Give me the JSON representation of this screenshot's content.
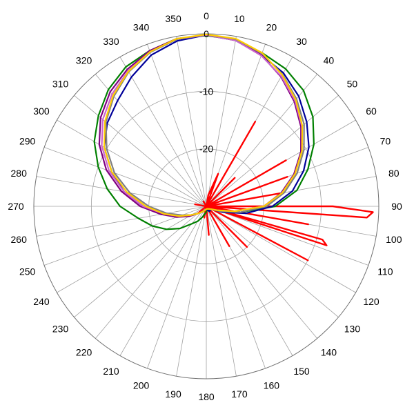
{
  "chart_data": {
    "type": "polar-line",
    "title": "",
    "angle_unit": "degrees",
    "angle_ticks": [
      0,
      10,
      20,
      30,
      40,
      50,
      60,
      70,
      80,
      90,
      100,
      110,
      120,
      130,
      140,
      150,
      160,
      170,
      180,
      190,
      200,
      210,
      220,
      230,
      240,
      250,
      260,
      270,
      280,
      290,
      300,
      310,
      320,
      330,
      340,
      350
    ],
    "angle_tick_labels": [
      "0",
      "10",
      "20",
      "30",
      "40",
      "50",
      "60",
      "70",
      "80",
      "90",
      "100",
      "110",
      "120",
      "130",
      "140",
      "150",
      "160",
      "170",
      "180",
      "190",
      "200",
      "210",
      "220",
      "230",
      "240",
      "250",
      "260",
      "270",
      "280",
      "290",
      "300",
      "310",
      "320",
      "330",
      "340",
      "350"
    ],
    "radial_range": [
      -30,
      0
    ],
    "radial_rings": [
      0,
      -10,
      -20,
      -30
    ],
    "radial_labels": [
      "0",
      "-10",
      "-20"
    ],
    "grid": true,
    "legend": "none",
    "series": [
      {
        "color": "#ff0000",
        "points": [
          [
            0,
            -30
          ],
          [
            10,
            -28
          ],
          [
            20,
            -24
          ],
          [
            25,
            -30
          ],
          [
            30,
            -13
          ],
          [
            35,
            -30
          ],
          [
            45,
            -23
          ],
          [
            50,
            -30
          ],
          [
            60,
            -14
          ],
          [
            65,
            -30
          ],
          [
            70,
            -15
          ],
          [
            75,
            -30
          ],
          [
            80,
            -17
          ],
          [
            85,
            -30
          ],
          [
            90,
            -8
          ],
          [
            92,
            -1
          ],
          [
            94,
            -2
          ],
          [
            96,
            -30
          ],
          [
            100,
            -12
          ],
          [
            103,
            -30
          ],
          [
            106,
            -9
          ],
          [
            108,
            -8
          ],
          [
            110,
            -30
          ],
          [
            118,
            -10
          ],
          [
            124,
            -30
          ],
          [
            135,
            -20
          ],
          [
            140,
            -30
          ],
          [
            150,
            -22
          ],
          [
            155,
            -30
          ],
          [
            175,
            -25
          ],
          [
            180,
            -30
          ],
          [
            190,
            -28
          ],
          [
            200,
            -30
          ],
          [
            230,
            -28
          ],
          [
            260,
            -30
          ],
          [
            280,
            -28
          ],
          [
            300,
            -30
          ],
          [
            330,
            -29
          ],
          [
            360,
            -30
          ]
        ]
      },
      {
        "color": "#008000",
        "points": [
          [
            0,
            -0.3
          ],
          [
            10,
            -0.6
          ],
          [
            20,
            -1.6
          ],
          [
            30,
            -2.4
          ],
          [
            40,
            -3.7
          ],
          [
            50,
            -5.8
          ],
          [
            60,
            -8.4
          ],
          [
            70,
            -11.2
          ],
          [
            80,
            -14
          ],
          [
            90,
            -18
          ],
          [
            100,
            -24
          ],
          [
            110,
            -28
          ],
          [
            120,
            -29
          ],
          [
            140,
            -29
          ],
          [
            160,
            -29.5
          ],
          [
            180,
            -29
          ],
          [
            200,
            -28
          ],
          [
            210,
            -27
          ],
          [
            220,
            -26
          ],
          [
            230,
            -24
          ],
          [
            240,
            -22
          ],
          [
            250,
            -20
          ],
          [
            260,
            -18
          ],
          [
            270,
            -15
          ],
          [
            280,
            -12.5
          ],
          [
            290,
            -10
          ],
          [
            300,
            -7.5
          ],
          [
            310,
            -5.5
          ],
          [
            320,
            -3.5
          ],
          [
            330,
            -2
          ],
          [
            340,
            -1.2
          ],
          [
            350,
            -0.4
          ],
          [
            360,
            -0.3
          ]
        ]
      },
      {
        "color": "#000099",
        "points": [
          [
            0,
            -0.2
          ],
          [
            10,
            -0.7
          ],
          [
            20,
            -2
          ],
          [
            30,
            -3.2
          ],
          [
            40,
            -5
          ],
          [
            50,
            -7.2
          ],
          [
            60,
            -9.4
          ],
          [
            70,
            -12
          ],
          [
            80,
            -14.8
          ],
          [
            90,
            -18.5
          ],
          [
            100,
            -23
          ],
          [
            110,
            -27
          ],
          [
            120,
            -29
          ],
          [
            150,
            -29
          ],
          [
            180,
            -29.5
          ],
          [
            210,
            -29
          ],
          [
            230,
            -28
          ],
          [
            240,
            -27
          ],
          [
            250,
            -25
          ],
          [
            260,
            -22
          ],
          [
            270,
            -19
          ],
          [
            280,
            -15.5
          ],
          [
            290,
            -12.5
          ],
          [
            300,
            -9.5
          ],
          [
            310,
            -7.5
          ],
          [
            320,
            -6
          ],
          [
            330,
            -4
          ],
          [
            340,
            -2
          ],
          [
            350,
            -0.8
          ],
          [
            360,
            -0.2
          ]
        ]
      },
      {
        "color": "#800080",
        "points": [
          [
            0,
            -0.2
          ],
          [
            10,
            -0.7
          ],
          [
            20,
            -2
          ],
          [
            30,
            -4
          ],
          [
            40,
            -6.2
          ],
          [
            50,
            -8.5
          ],
          [
            60,
            -11
          ],
          [
            70,
            -13.8
          ],
          [
            80,
            -16.8
          ],
          [
            90,
            -20
          ],
          [
            100,
            -25
          ],
          [
            110,
            -28
          ],
          [
            120,
            -29
          ],
          [
            150,
            -29.5
          ],
          [
            180,
            -29.5
          ],
          [
            210,
            -29
          ],
          [
            230,
            -28
          ],
          [
            240,
            -26.5
          ],
          [
            250,
            -24.5
          ],
          [
            260,
            -22
          ],
          [
            270,
            -18.5
          ],
          [
            280,
            -15
          ],
          [
            290,
            -11.5
          ],
          [
            300,
            -8.5
          ],
          [
            310,
            -6
          ],
          [
            320,
            -4
          ],
          [
            330,
            -2.5
          ],
          [
            340,
            -1.2
          ],
          [
            350,
            -0.4
          ],
          [
            360,
            -0.2
          ]
        ]
      },
      {
        "color": "#cc66cc",
        "points": [
          [
            0,
            -0.2
          ],
          [
            10,
            -0.7
          ],
          [
            20,
            -2.1
          ],
          [
            30,
            -3.9
          ],
          [
            40,
            -6
          ],
          [
            50,
            -8.3
          ],
          [
            60,
            -10.8
          ],
          [
            70,
            -13.6
          ],
          [
            80,
            -16.6
          ],
          [
            90,
            -20
          ],
          [
            100,
            -25
          ],
          [
            110,
            -28
          ],
          [
            120,
            -29
          ],
          [
            150,
            -29.5
          ],
          [
            180,
            -29.5
          ],
          [
            210,
            -29
          ],
          [
            230,
            -28
          ],
          [
            240,
            -27
          ],
          [
            250,
            -25
          ],
          [
            260,
            -22.5
          ],
          [
            270,
            -19
          ],
          [
            280,
            -15.5
          ],
          [
            290,
            -12
          ],
          [
            300,
            -9
          ],
          [
            310,
            -6.5
          ],
          [
            320,
            -4.5
          ],
          [
            330,
            -2.8
          ],
          [
            340,
            -1.4
          ],
          [
            350,
            -0.5
          ],
          [
            360,
            -0.2
          ]
        ]
      },
      {
        "color": "#808080",
        "points": [
          [
            0,
            -0.1
          ],
          [
            10,
            -0.5
          ],
          [
            20,
            -1.7
          ],
          [
            30,
            -3.5
          ],
          [
            40,
            -5.6
          ],
          [
            50,
            -7.8
          ],
          [
            60,
            -10.4
          ],
          [
            70,
            -13.2
          ],
          [
            80,
            -16.2
          ],
          [
            90,
            -19.5
          ],
          [
            100,
            -24
          ],
          [
            110,
            -27.5
          ],
          [
            120,
            -29
          ],
          [
            150,
            -29.5
          ],
          [
            180,
            -29.5
          ],
          [
            210,
            -29
          ],
          [
            230,
            -28
          ],
          [
            240,
            -27
          ],
          [
            250,
            -25.5
          ],
          [
            260,
            -23
          ],
          [
            270,
            -20
          ],
          [
            280,
            -16.5
          ],
          [
            290,
            -13
          ],
          [
            300,
            -10
          ],
          [
            310,
            -7.2
          ],
          [
            320,
            -5
          ],
          [
            330,
            -3
          ],
          [
            340,
            -1.5
          ],
          [
            350,
            -0.5
          ],
          [
            360,
            -0.1
          ]
        ]
      },
      {
        "color": "#ffcc00",
        "points": [
          [
            0,
            -0.1
          ],
          [
            10,
            -0.4
          ],
          [
            20,
            -1.6
          ],
          [
            30,
            -3.6
          ],
          [
            40,
            -5.8
          ],
          [
            50,
            -8.2
          ],
          [
            60,
            -10.8
          ],
          [
            70,
            -13.6
          ],
          [
            80,
            -16.6
          ],
          [
            90,
            -20
          ],
          [
            100,
            -25
          ],
          [
            110,
            -28
          ],
          [
            120,
            -29
          ],
          [
            150,
            -29.5
          ],
          [
            180,
            -29.5
          ],
          [
            210,
            -29
          ],
          [
            230,
            -28
          ],
          [
            240,
            -27
          ],
          [
            250,
            -25
          ],
          [
            260,
            -22.5
          ],
          [
            270,
            -19.5
          ],
          [
            280,
            -16
          ],
          [
            290,
            -12.5
          ],
          [
            300,
            -9.5
          ],
          [
            310,
            -7
          ],
          [
            320,
            -4.8
          ],
          [
            330,
            -2.9
          ],
          [
            340,
            -1.4
          ],
          [
            350,
            -0.4
          ],
          [
            360,
            -0.1
          ]
        ]
      }
    ]
  }
}
